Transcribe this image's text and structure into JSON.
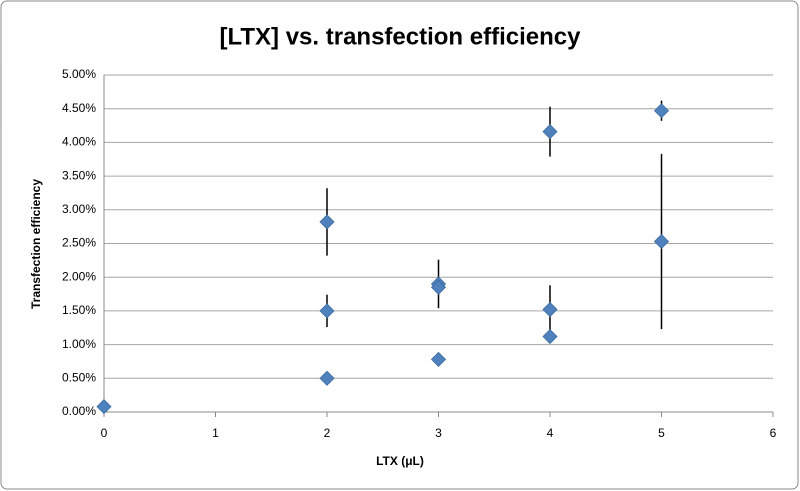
{
  "chart_data": {
    "type": "scatter",
    "title": "[LTX] vs. transfection efficiency",
    "x_label": "LTX (μL)",
    "y_label": "Transfection efficiency",
    "series": [
      {
        "name": "Transfection efficiency",
        "color": "#4f81bd",
        "x": [
          0,
          2,
          2,
          2,
          3,
          3,
          3,
          4,
          4,
          4,
          5,
          5
        ],
        "values": [
          0.08,
          2.82,
          1.5,
          0.5,
          1.9,
          1.85,
          0.78,
          4.16,
          1.52,
          1.12,
          4.47,
          2.53
        ],
        "errors": [
          null,
          0.5,
          0.24,
          null,
          0.36,
          null,
          null,
          0.37,
          0.36,
          null,
          0.15,
          1.3
        ]
      }
    ],
    "xlim": [
      0,
      6
    ],
    "xticks": [
      0,
      1,
      2,
      3,
      4,
      5,
      6
    ],
    "ylim": [
      0,
      5
    ],
    "yticks": [
      {
        "value": 0,
        "label": "0.00%"
      },
      {
        "value": 0.5,
        "label": "0.50%"
      },
      {
        "value": 1,
        "label": "1.00%"
      },
      {
        "value": 1.5,
        "label": "1.50%"
      },
      {
        "value": 2,
        "label": "2.00%"
      },
      {
        "value": 2.5,
        "label": "2.50%"
      },
      {
        "value": 3,
        "label": "3.00%"
      },
      {
        "value": 3.5,
        "label": "3.50%"
      },
      {
        "value": 4,
        "label": "4.00%"
      },
      {
        "value": 4.5,
        "label": "4.50%"
      },
      {
        "value": 5,
        "label": "5.00%"
      }
    ],
    "grid": true
  }
}
